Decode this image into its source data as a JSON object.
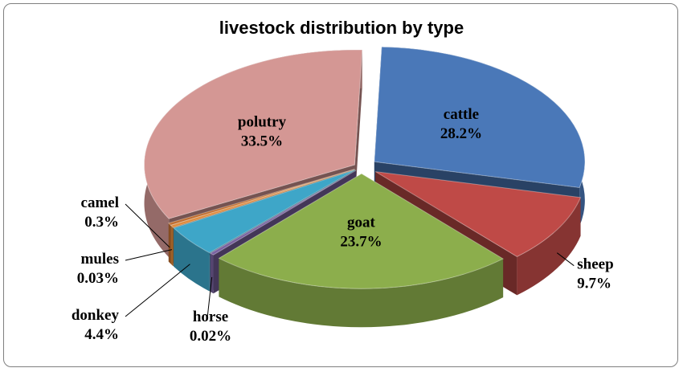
{
  "chart_data": {
    "type": "pie",
    "title": "livestock distribution by type",
    "exploded": true,
    "three_d": true,
    "slices": [
      {
        "label": "cattle",
        "value": 28.2,
        "display": "28.2%",
        "color": "#4a78b8"
      },
      {
        "label": "sheep",
        "value": 9.7,
        "display": "9.7%",
        "color": "#bf4a47"
      },
      {
        "label": "goat",
        "value": 23.7,
        "display": "23.7%",
        "color": "#8cae4c"
      },
      {
        "label": "horse",
        "value": 0.02,
        "display": "0.02%",
        "color": "#7a62a0"
      },
      {
        "label": "donkey",
        "value": 4.4,
        "display": "4.4%",
        "color": "#3ea6c8"
      },
      {
        "label": "mules",
        "value": 0.03,
        "display": "0.03%",
        "color": "#e08a3a"
      },
      {
        "label": "camel",
        "value": 0.3,
        "display": "0.3%",
        "color": "#c06d2e"
      },
      {
        "label": "polutry",
        "value": 33.5,
        "display": "33.5%",
        "color": "#d49794"
      }
    ]
  }
}
